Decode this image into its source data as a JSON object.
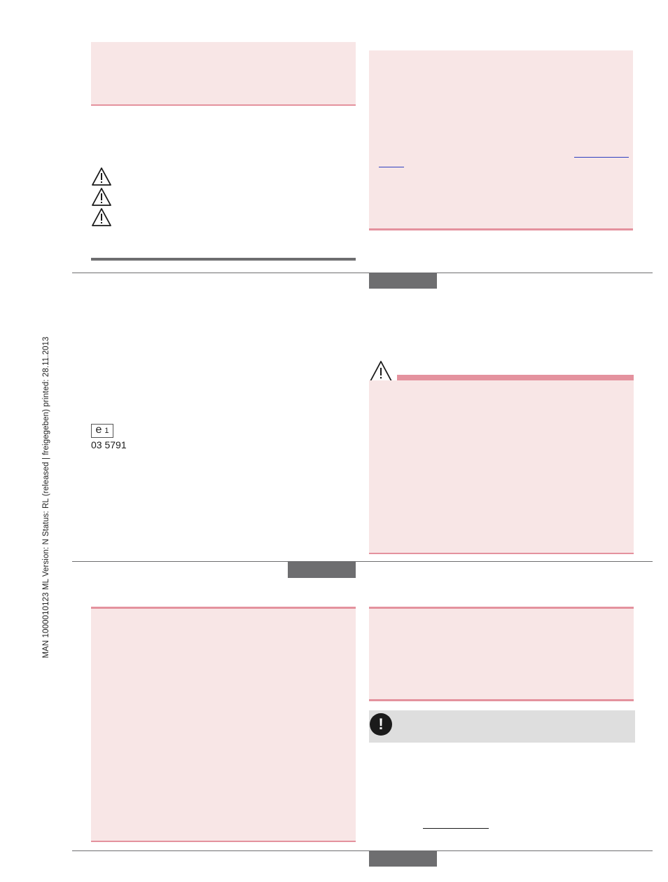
{
  "sidebar": {
    "vertical_text": "MAN 1000010123 ML Version: N Status: RL (released | freigegeben) printed: 28.11.2013"
  },
  "certification": {
    "mark_letter": "e",
    "mark_number": "1",
    "approval_number": "03 5791"
  },
  "icons": {
    "warning": "warning-triangle-icon",
    "notice": "exclamation-circle-icon"
  },
  "colors": {
    "panel_pink": "#f8e6e6",
    "accent_pink": "#e4929e",
    "bar_grey": "#6e6e70",
    "note_grey": "#dedede"
  }
}
